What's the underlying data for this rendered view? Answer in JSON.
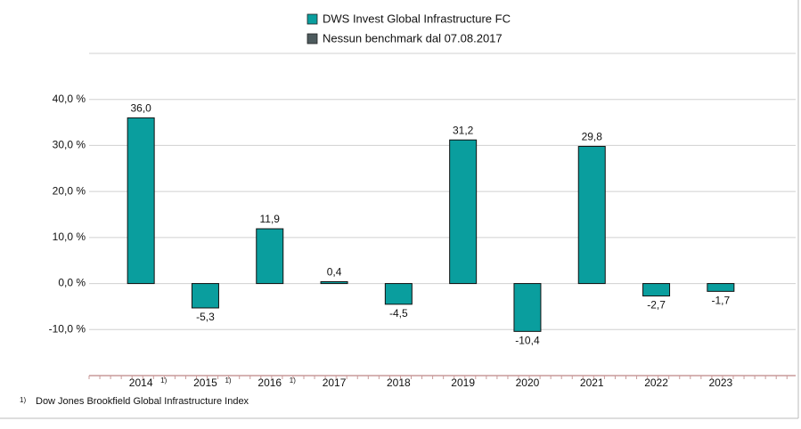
{
  "chart_data": {
    "type": "bar",
    "categories": [
      "2014",
      "2015",
      "2016",
      "2017",
      "2018",
      "2019",
      "2020",
      "2021",
      "2022",
      "2023"
    ],
    "category_notes": [
      "1)",
      "1)",
      "1)",
      null,
      null,
      null,
      null,
      null,
      null,
      null
    ],
    "series": [
      {
        "name": "DWS Invest Global Infrastructure FC",
        "color": "#0a9e9e",
        "values": [
          36.0,
          -5.3,
          11.9,
          0.4,
          -4.5,
          31.2,
          -10.4,
          29.8,
          -2.7,
          -1.7
        ],
        "value_labels": [
          "36,0",
          "-5,3",
          "11,9",
          "0,4",
          "-4,5",
          "31,2",
          "-10,4",
          "29,8",
          "-2,7",
          "-1,7"
        ]
      },
      {
        "name": "Nessun benchmark dal 07.08.2017",
        "color": "#4d5b5e",
        "values": [
          null,
          null,
          null,
          null,
          null,
          null,
          null,
          null,
          null,
          null
        ]
      }
    ],
    "ylim": [
      -20,
      50
    ],
    "yticks": [
      {
        "value": -10,
        "label": "-10,0 %"
      },
      {
        "value": 0,
        "label": "0,0 %"
      },
      {
        "value": 10,
        "label": "10,0 %"
      },
      {
        "value": 20,
        "label": "20,0 %"
      },
      {
        "value": 30,
        "label": "30,0 %"
      },
      {
        "value": 40,
        "label": "40,0 %"
      }
    ],
    "grid": true,
    "legend": "top",
    "footnote": {
      "marker": "1)",
      "text": "Dow Jones Brookfield Global Infrastructure Index"
    }
  }
}
